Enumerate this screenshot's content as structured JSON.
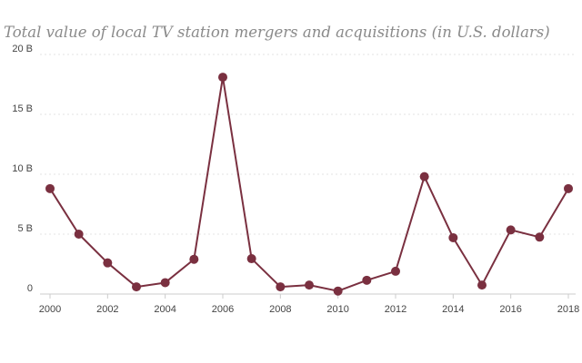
{
  "chart_data": {
    "type": "line",
    "title": "Total value of local TV station mergers and acquisitions (in U.S. dollars)",
    "xlabel": "",
    "ylabel": "",
    "x": [
      2000,
      2001,
      2002,
      2003,
      2004,
      2005,
      2006,
      2007,
      2008,
      2009,
      2010,
      2011,
      2012,
      2013,
      2014,
      2015,
      2016,
      2017,
      2018
    ],
    "series": [
      {
        "values": [
          8.8,
          5.0,
          2.6,
          0.6,
          0.95,
          2.9,
          18.1,
          2.95,
          0.6,
          0.75,
          0.25,
          1.15,
          1.9,
          9.8,
          4.7,
          0.75,
          5.35,
          4.75,
          8.8
        ],
        "color": "#7a3040"
      }
    ],
    "ylim": [
      0,
      20
    ],
    "xlim": [
      2000,
      2018
    ],
    "y_ticks": [
      {
        "value": 0,
        "label": "0"
      },
      {
        "value": 5,
        "label": "5 B"
      },
      {
        "value": 10,
        "label": "10 B"
      },
      {
        "value": 15,
        "label": "15 B"
      },
      {
        "value": 20,
        "label": "20 B"
      }
    ],
    "x_ticks": [
      {
        "value": 2000,
        "label": "2000"
      },
      {
        "value": 2002,
        "label": "2002"
      },
      {
        "value": 2004,
        "label": "2004"
      },
      {
        "value": 2006,
        "label": "2006"
      },
      {
        "value": 2008,
        "label": "2008"
      },
      {
        "value": 2010,
        "label": "2010"
      },
      {
        "value": 2012,
        "label": "2012"
      },
      {
        "value": 2014,
        "label": "2014"
      },
      {
        "value": 2016,
        "label": "2016"
      },
      {
        "value": 2018,
        "label": "2018"
      }
    ],
    "grid": true,
    "grid_color": "#e3e3e3",
    "axis_color": "#cccccc"
  }
}
